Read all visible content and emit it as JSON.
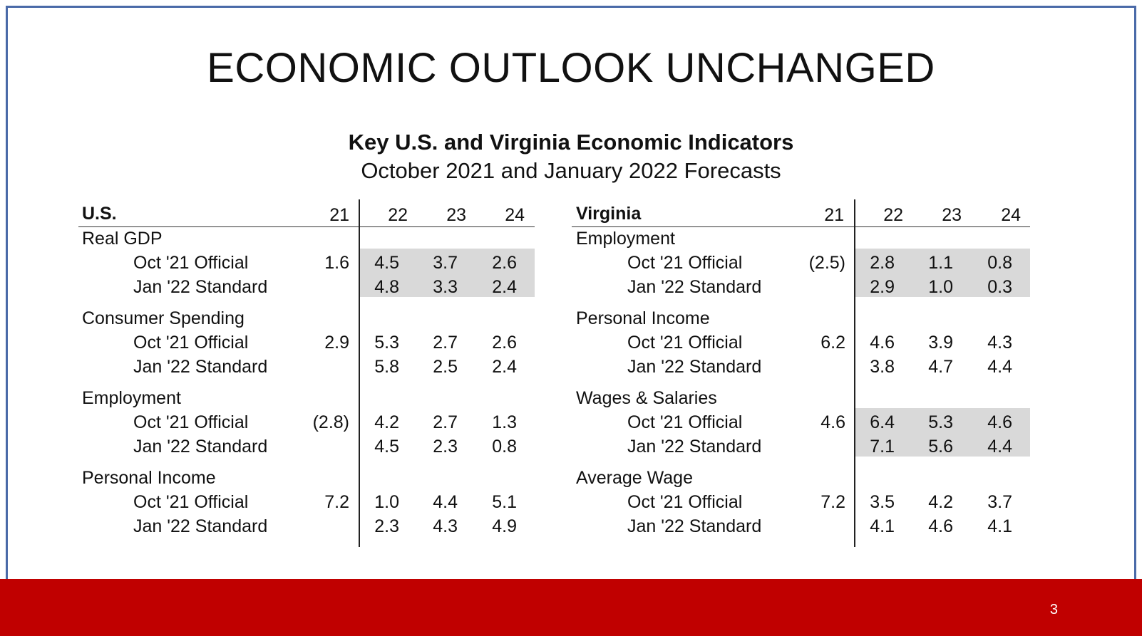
{
  "title": "ECONOMIC OUTLOOK UNCHANGED",
  "subtitle_bold": "Key U.S. and Virginia Economic Indicators",
  "subtitle": "October 2021 and January 2022 Forecasts",
  "page_number": "3",
  "colors": {
    "accent_bar": "#c00000",
    "frame": "#4a6aa8",
    "shade": "#d9d9d9"
  },
  "us": {
    "header": "U.S.",
    "years": [
      "21",
      "22",
      "23",
      "24"
    ],
    "groups": [
      {
        "name": "Real GDP",
        "shaded": true,
        "rows": [
          {
            "label": "Oct '21 Official",
            "v21": "1.6",
            "v22": "4.5",
            "v23": "3.7",
            "v24": "2.6"
          },
          {
            "label": "Jan '22 Standard",
            "v21": "",
            "v22": "4.8",
            "v23": "3.3",
            "v24": "2.4"
          }
        ]
      },
      {
        "name": "Consumer Spending",
        "shaded": false,
        "rows": [
          {
            "label": "Oct '21 Official",
            "v21": "2.9",
            "v22": "5.3",
            "v23": "2.7",
            "v24": "2.6"
          },
          {
            "label": "Jan '22 Standard",
            "v21": "",
            "v22": "5.8",
            "v23": "2.5",
            "v24": "2.4"
          }
        ]
      },
      {
        "name": "Employment",
        "shaded": false,
        "rows": [
          {
            "label": "Oct '21 Official",
            "v21": "(2.8)",
            "v22": "4.2",
            "v23": "2.7",
            "v24": "1.3"
          },
          {
            "label": "Jan '22 Standard",
            "v21": "",
            "v22": "4.5",
            "v23": "2.3",
            "v24": "0.8"
          }
        ]
      },
      {
        "name": "Personal Income",
        "shaded": false,
        "rows": [
          {
            "label": "Oct '21 Official",
            "v21": "7.2",
            "v22": "1.0",
            "v23": "4.4",
            "v24": "5.1"
          },
          {
            "label": "Jan '22 Standard",
            "v21": "",
            "v22": "2.3",
            "v23": "4.3",
            "v24": "4.9"
          }
        ]
      }
    ]
  },
  "va": {
    "header": "Virginia",
    "years": [
      "21",
      "22",
      "23",
      "24"
    ],
    "groups": [
      {
        "name": "Employment",
        "shaded": true,
        "rows": [
          {
            "label": "Oct '21 Official",
            "v21": "(2.5)",
            "v22": "2.8",
            "v23": "1.1",
            "v24": "0.8"
          },
          {
            "label": "Jan '22 Standard",
            "v21": "",
            "v22": "2.9",
            "v23": "1.0",
            "v24": "0.3"
          }
        ]
      },
      {
        "name": "Personal Income",
        "shaded": false,
        "rows": [
          {
            "label": "Oct '21 Official",
            "v21": "6.2",
            "v22": "4.6",
            "v23": "3.9",
            "v24": "4.3"
          },
          {
            "label": "Jan '22 Standard",
            "v21": "",
            "v22": "3.8",
            "v23": "4.7",
            "v24": "4.4"
          }
        ]
      },
      {
        "name": "Wages & Salaries",
        "shaded": true,
        "rows": [
          {
            "label": "Oct '21 Official",
            "v21": "4.6",
            "v22": "6.4",
            "v23": "5.3",
            "v24": "4.6"
          },
          {
            "label": "Jan '22 Standard",
            "v21": "",
            "v22": "7.1",
            "v23": "5.6",
            "v24": "4.4"
          }
        ]
      },
      {
        "name": "Average Wage",
        "shaded": false,
        "rows": [
          {
            "label": "Oct '21 Official",
            "v21": "7.2",
            "v22": "3.5",
            "v23": "4.2",
            "v24": "3.7"
          },
          {
            "label": "Jan '22 Standard",
            "v21": "",
            "v22": "4.1",
            "v23": "4.6",
            "v24": "4.1"
          }
        ]
      }
    ]
  }
}
